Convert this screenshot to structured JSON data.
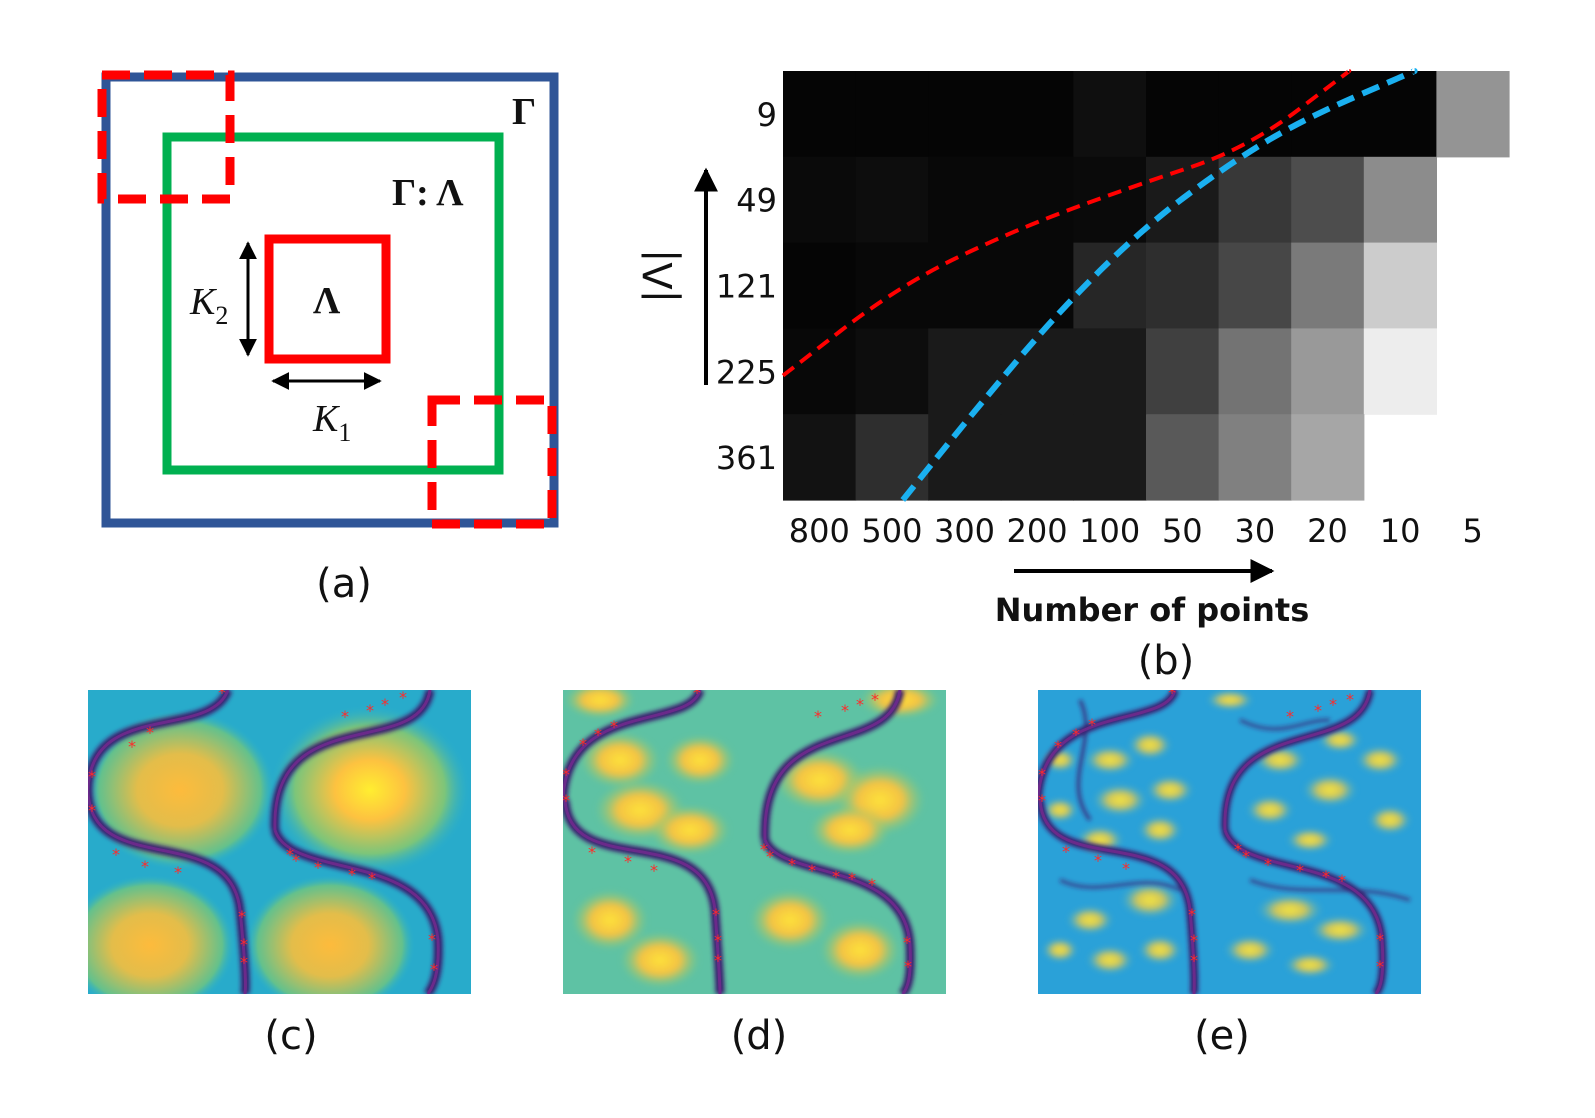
{
  "panel_a": {
    "caption": "(a)",
    "outer_label": "Γ",
    "middle_label": "Γ: Λ",
    "inner_label": "Λ",
    "k1_label": "K",
    "k1_sub": "1",
    "k2_label": "K",
    "k2_sub": "2",
    "colors": {
      "outer": "#2f5597",
      "middle": "#00b050",
      "inner": "#ff0000"
    }
  },
  "panel_b": {
    "caption": "(b)",
    "xlabel": "Number of points",
    "ylabel": "|Λ|",
    "curve_colors": {
      "red": "#ff0000",
      "blue": "#1ab0f0"
    }
  },
  "panel_c": {
    "caption": "(c)"
  },
  "panel_d": {
    "caption": "(d)"
  },
  "panel_e": {
    "caption": "(e)"
  },
  "chart_data": {
    "type": "heatmap",
    "title": "",
    "xlabel": "Number of points",
    "ylabel": "|Λ|",
    "x_categories": [
      "800",
      "500",
      "300",
      "200",
      "100",
      "50",
      "30",
      "20",
      "10",
      "5"
    ],
    "y_categories": [
      "9",
      "49",
      "121",
      "225",
      "361"
    ],
    "grayscale_min": 0,
    "grayscale_max": 1,
    "values": [
      [
        0.02,
        0.02,
        0.02,
        0.02,
        0.06,
        0.02,
        0.02,
        0.02,
        0.02,
        0.58
      ],
      [
        0.04,
        0.05,
        0.03,
        0.03,
        0.04,
        0.1,
        0.22,
        0.3,
        0.55,
        null
      ],
      [
        0.02,
        0.03,
        0.03,
        0.03,
        0.15,
        0.18,
        0.28,
        0.48,
        0.8,
        null
      ],
      [
        0.03,
        0.05,
        0.1,
        0.1,
        0.1,
        0.25,
        0.45,
        0.6,
        0.93,
        null
      ],
      [
        0.07,
        0.18,
        0.1,
        0.1,
        0.1,
        0.35,
        0.5,
        0.65,
        null,
        null
      ]
    ],
    "series": [
      {
        "name": "red dashed boundary",
        "color": "red",
        "x": [
          0.0,
          1.6,
          3.2,
          4.8,
          6.4,
          7.8
        ],
        "y": [
          3.55,
          2.5,
          1.85,
          1.35,
          0.9,
          0.0
        ]
      },
      {
        "name": "blue dashed boundary",
        "color": "blue",
        "x": [
          1.65,
          2.6,
          3.8,
          5.0,
          6.2,
          7.2,
          8.7
        ],
        "y": [
          5.0,
          4.0,
          2.8,
          1.8,
          1.05,
          0.55,
          0.0
        ]
      }
    ]
  }
}
